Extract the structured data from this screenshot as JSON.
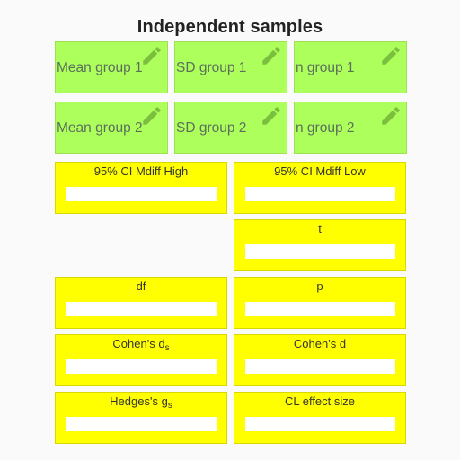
{
  "title": "Independent samples",
  "colors": {
    "input_bg": "#adff5c",
    "output_bg": "#ffff00",
    "pencil": "#7bbf3e"
  },
  "inputs": {
    "mean1": {
      "label": "Mean group 1",
      "icon": "pencil-icon",
      "value": ""
    },
    "sd1": {
      "label": "SD group 1",
      "icon": "pencil-icon",
      "value": ""
    },
    "n1": {
      "label": "n group 1",
      "icon": "pencil-icon",
      "value": ""
    },
    "mean2": {
      "label": "Mean group 2",
      "icon": "pencil-icon",
      "value": ""
    },
    "sd2": {
      "label": "SD group 2",
      "icon": "pencil-icon",
      "value": ""
    },
    "n2": {
      "label": "n group 2",
      "icon": "pencil-icon",
      "value": ""
    }
  },
  "outputs": {
    "ci_high": {
      "label": "95% CI Mdiff High",
      "value": ""
    },
    "ci_low": {
      "label": "95% CI Mdiff Low",
      "value": ""
    },
    "t": {
      "label": "t",
      "value": ""
    },
    "df": {
      "label": "df",
      "value": ""
    },
    "p": {
      "label": "p",
      "value": ""
    },
    "cohens_ds": {
      "label": "Cohen's d",
      "sub": "s",
      "value": ""
    },
    "cohens_d": {
      "label": "Cohen's d",
      "value": ""
    },
    "hedges_gs": {
      "label": "Hedges's g",
      "sub": "s",
      "value": ""
    },
    "cl": {
      "label": "CL effect size",
      "value": ""
    }
  }
}
